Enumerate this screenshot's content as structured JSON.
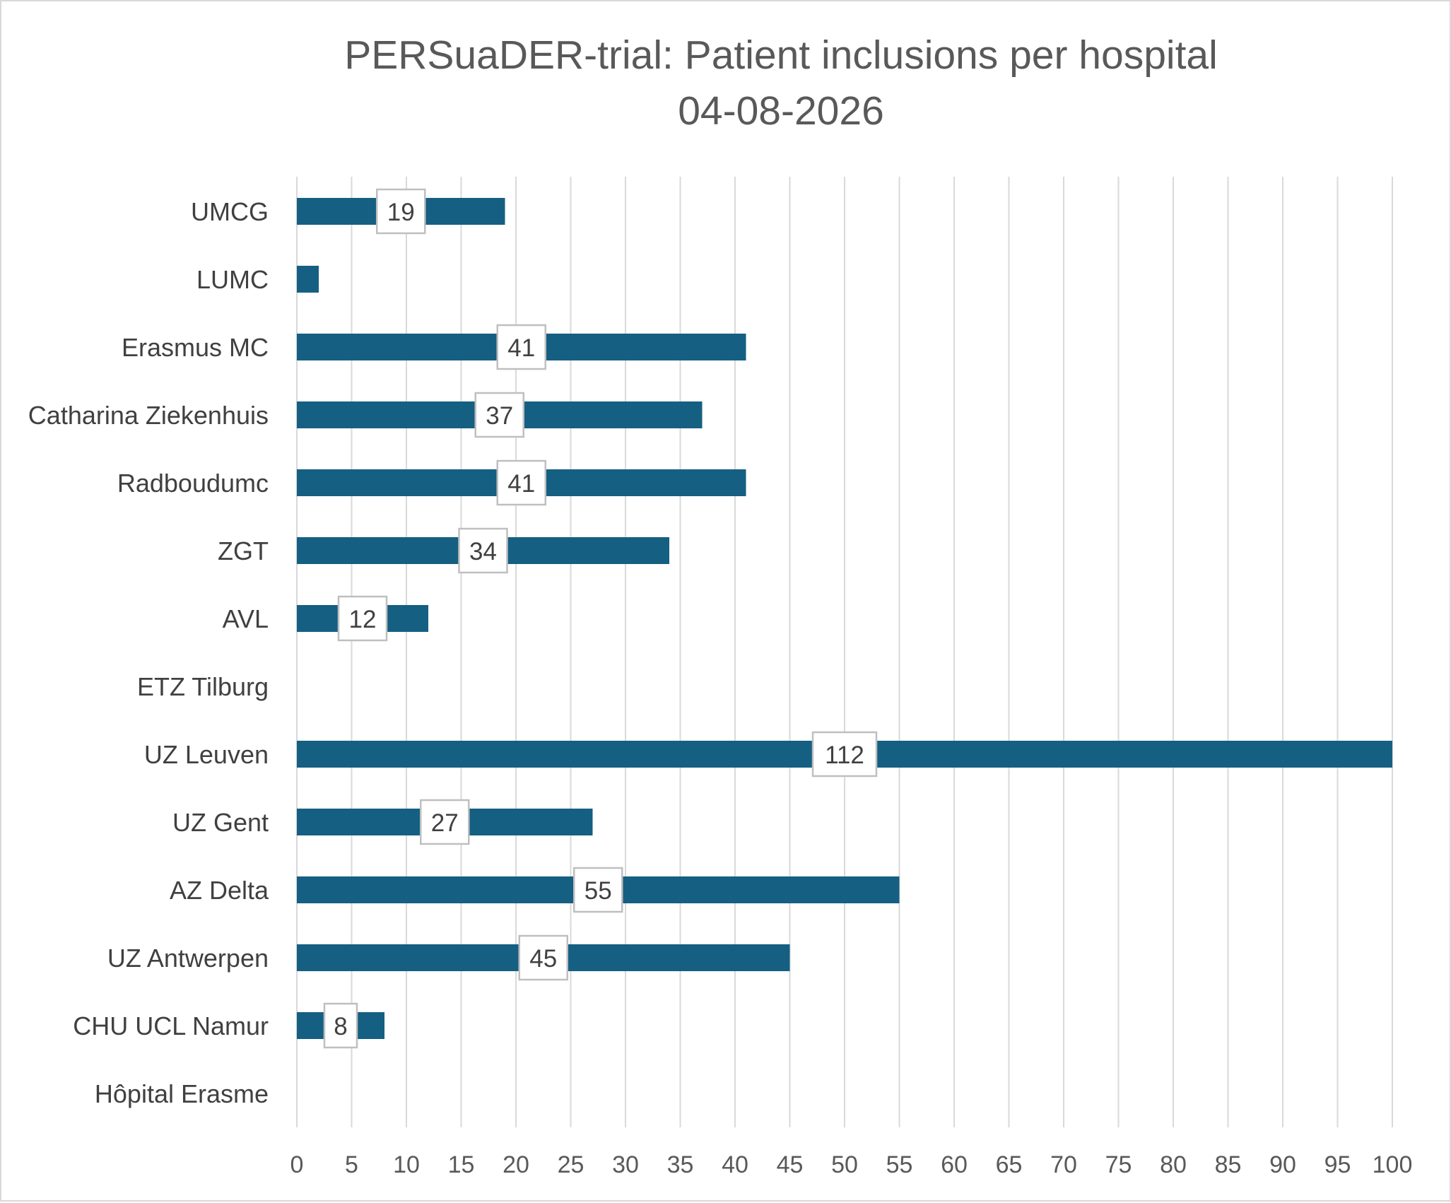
{
  "chart_data": {
    "type": "bar",
    "orientation": "horizontal",
    "title": "PERSuaDER-trial: Patient inclusions per hospital",
    "subtitle": "04-08-2026",
    "xlabel": "",
    "ylabel": "",
    "xlim": [
      0,
      100
    ],
    "x_ticks": [
      0,
      5,
      10,
      15,
      20,
      25,
      30,
      35,
      40,
      45,
      50,
      55,
      60,
      65,
      70,
      75,
      80,
      85,
      90,
      95,
      100
    ],
    "grid": true,
    "legend": "none",
    "bar_color": "#155f82",
    "categories": [
      "UMCG",
      "LUMC",
      "Erasmus MC",
      "Catharina Ziekenhuis",
      "Radboudumc",
      "ZGT",
      "AVL",
      "ETZ Tilburg",
      "UZ Leuven",
      "UZ Gent",
      "AZ Delta",
      "UZ Antwerpen",
      "CHU UCL Namur",
      "Hôpital Erasme"
    ],
    "values": [
      19,
      2,
      41,
      37,
      41,
      34,
      12,
      0,
      112,
      27,
      55,
      45,
      8,
      0
    ],
    "data_labels": [
      "19",
      "",
      "41",
      "37",
      "41",
      "34",
      "12",
      "",
      "112",
      "27",
      "55",
      "45",
      "8",
      ""
    ]
  }
}
